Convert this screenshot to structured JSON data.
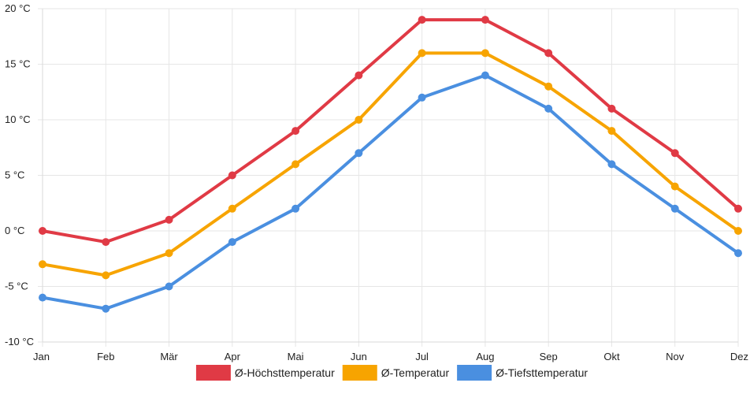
{
  "chart_data": {
    "type": "line",
    "title": "",
    "xlabel": "",
    "ylabel": "",
    "categories": [
      "Jan",
      "Feb",
      "Mär",
      "Apr",
      "Mai",
      "Jun",
      "Jul",
      "Aug",
      "Sep",
      "Okt",
      "Nov",
      "Dez"
    ],
    "ylim": [
      -10,
      20
    ],
    "ytick_step": 5,
    "y_unit": "°C",
    "grid": true,
    "legend_position": "bottom",
    "series": [
      {
        "name": "Ø-Höchsttemperatur",
        "color": "#e03a45",
        "values": [
          0,
          -1,
          1,
          5,
          9,
          14,
          19,
          19,
          16,
          11,
          7,
          2
        ]
      },
      {
        "name": "Ø-Temperatur",
        "color": "#f7a400",
        "values": [
          -3,
          -4,
          -2,
          2,
          6,
          10,
          16,
          16,
          13,
          9,
          4,
          0
        ]
      },
      {
        "name": "Ø-Tiefsttemperatur",
        "color": "#4a8fe0",
        "values": [
          -6,
          -7,
          -5,
          -1,
          2,
          7,
          12,
          14,
          11,
          6,
          2,
          -2
        ]
      }
    ]
  }
}
